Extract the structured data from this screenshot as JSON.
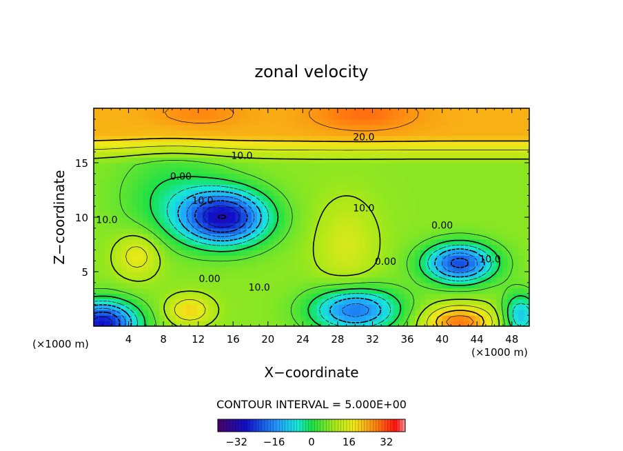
{
  "chart_data": {
    "type": "heatmap",
    "title": "zonal velocity",
    "xlabel": "X−coordinate",
    "ylabel": "Z−coordinate",
    "x_unit_left": "(×1000 m)",
    "x_unit_right": "(×1000 m)",
    "xlim": [
      0,
      50
    ],
    "ylim": [
      0,
      20
    ],
    "xticks": [
      "4",
      "8",
      "12",
      "16",
      "20",
      "24",
      "28",
      "32",
      "36",
      "40",
      "44",
      "48"
    ],
    "xtick_values": [
      4,
      8,
      12,
      16,
      20,
      24,
      28,
      32,
      36,
      40,
      44,
      48
    ],
    "yticks": [
      "5",
      "10",
      "15"
    ],
    "ytick_values": [
      5,
      10,
      15
    ],
    "contour_interval_text": "CONTOUR INTERVAL = 5.000E+00",
    "colorbar": {
      "range": [
        -40,
        40
      ],
      "ticks": [
        "−32",
        "−16",
        "0",
        "16",
        "32"
      ],
      "tick_values": [
        -32,
        -16,
        0,
        16,
        32
      ]
    },
    "contour_labels": [
      {
        "text": "20.0",
        "x": 31.0,
        "z": 17.3
      },
      {
        "text": "10.0",
        "x": 17.0,
        "z": 15.6
      },
      {
        "text": "0.00",
        "x": 10.0,
        "z": 13.7
      },
      {
        "text": "10.0",
        "x": 12.5,
        "z": 11.5
      },
      {
        "text": "10.0",
        "x": 1.5,
        "z": 9.7
      },
      {
        "text": "10.0",
        "x": 31.0,
        "z": 10.8
      },
      {
        "text": "0.00",
        "x": 40.0,
        "z": 9.2
      },
      {
        "text": "0.00",
        "x": 33.5,
        "z": 5.9
      },
      {
        "text": "10.0",
        "x": 45.5,
        "z": 6.1
      },
      {
        "text": "0.00",
        "x": 13.3,
        "z": 4.3
      },
      {
        "text": "10.0",
        "x": 19.0,
        "z": 3.5
      }
    ],
    "features": [
      {
        "kind": "max",
        "x": 31,
        "z": 19.5,
        "value": 28
      },
      {
        "kind": "max",
        "x": 12,
        "z": 19.5,
        "value": 25
      },
      {
        "kind": "min",
        "x": 15,
        "z": 10.0,
        "value": -30
      },
      {
        "kind": "min",
        "x": 42,
        "z": 5.8,
        "value": -24
      },
      {
        "kind": "min",
        "x": 1,
        "z": 0.3,
        "value": -30
      },
      {
        "kind": "min",
        "x": 30,
        "z": 1.5,
        "value": -20
      },
      {
        "kind": "max",
        "x": 42,
        "z": 0.4,
        "value": 28
      },
      {
        "kind": "max",
        "x": 11,
        "z": 1.5,
        "value": 20
      },
      {
        "kind": "max",
        "x": 5,
        "z": 6.5,
        "value": 18
      },
      {
        "kind": "max",
        "x": 29,
        "z": 7.5,
        "value": 15
      }
    ]
  }
}
